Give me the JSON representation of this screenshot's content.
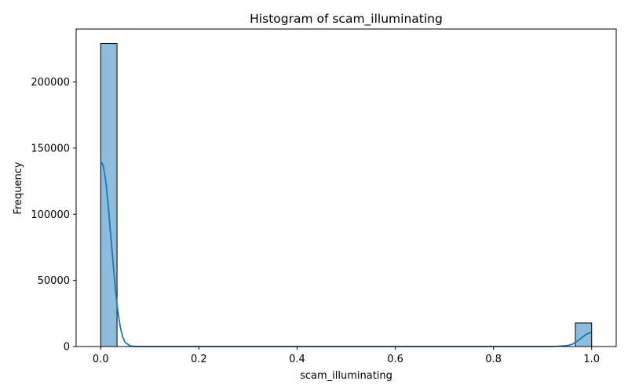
{
  "chart_data": {
    "type": "bar",
    "title": "Histogram of scam_illuminating",
    "xlabel": "scam_illuminating",
    "ylabel": "Frequency",
    "xlim": [
      -0.05,
      1.05
    ],
    "ylim": [
      0,
      240000
    ],
    "xticks": [
      0.0,
      0.2,
      0.4,
      0.6,
      0.8,
      1.0
    ],
    "xtick_labels": [
      "0.0",
      "0.2",
      "0.4",
      "0.6",
      "0.8",
      "1.0"
    ],
    "yticks": [
      0,
      50000,
      100000,
      150000,
      200000
    ],
    "ytick_labels": [
      "0",
      "50000",
      "100000",
      "150000",
      "200000"
    ],
    "grid": false,
    "bins": [
      {
        "x0": 0.0,
        "x1": 0.0333,
        "value": 229000
      },
      {
        "x0": 0.9667,
        "x1": 1.0,
        "value": 17800
      }
    ],
    "kde": {
      "x": [
        0.0,
        0.005,
        0.01,
        0.015,
        0.02,
        0.025,
        0.03,
        0.035,
        0.04,
        0.045,
        0.05,
        0.06,
        0.07,
        0.08,
        0.1,
        0.2,
        0.4,
        0.6,
        0.8,
        0.9,
        0.93,
        0.95,
        0.96,
        0.97,
        0.98,
        0.99,
        1.0
      ],
      "y": [
        140000,
        137000,
        126000,
        108000,
        86000,
        64000,
        43000,
        26500,
        14500,
        7000,
        3000,
        500,
        50,
        0,
        0,
        0,
        0,
        0,
        0,
        0,
        150,
        700,
        1700,
        3800,
        6800,
        9500,
        10800
      ]
    },
    "bar_color": "#8dbcdc",
    "bar_edge_color": "#000000",
    "kde_color": "#1f77b4"
  }
}
